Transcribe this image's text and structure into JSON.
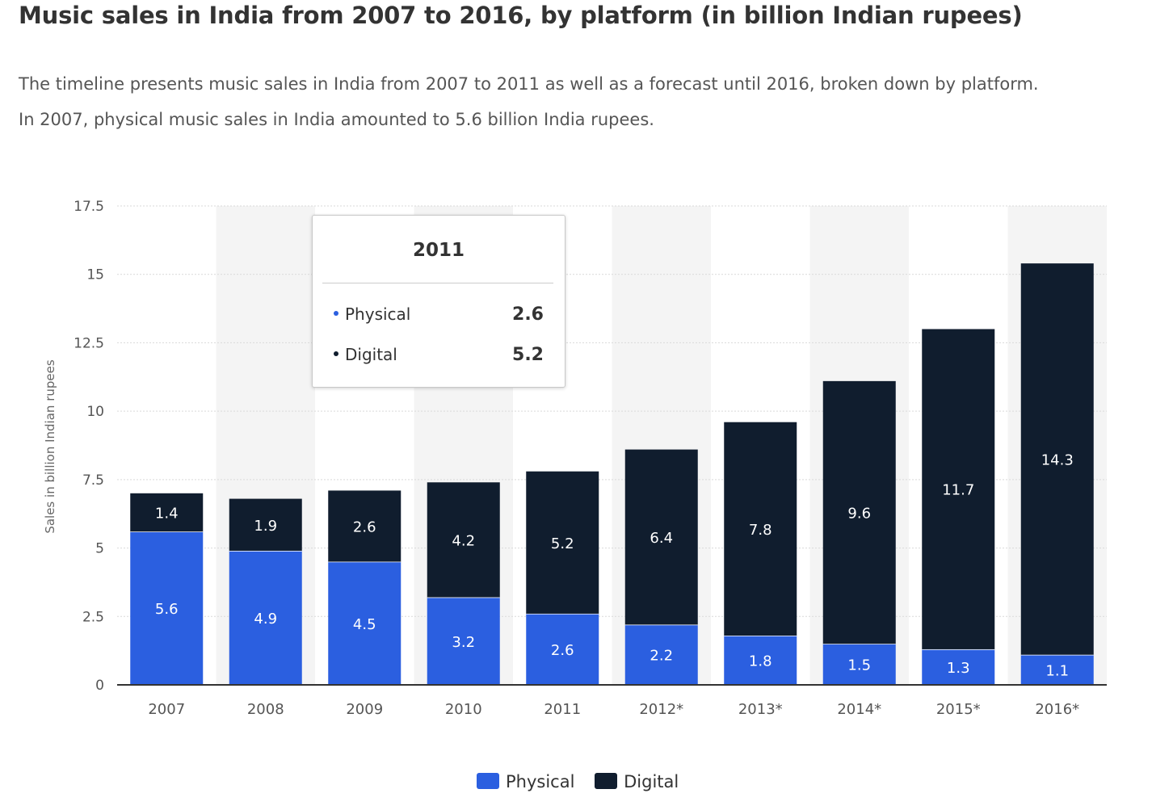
{
  "title": "Music sales in India from 2007 to 2016, by platform (in billion Indian rupees)",
  "description": [
    "The timeline presents music sales in India from 2007 to 2011 as well as a forecast until 2016, broken down by platform.",
    "In 2007, physical music sales in India amounted to 5.6 billion India rupees."
  ],
  "tooltip": {
    "title": "2011",
    "rows": [
      {
        "label": "Physical",
        "value": "2.6"
      },
      {
        "label": "Digital",
        "value": "5.2"
      }
    ]
  },
  "colors": {
    "physical": "#2b5fe0",
    "digital": "#101d2e",
    "band": "#f4f4f4",
    "grid": "#d9d9d9"
  },
  "chart_data": {
    "type": "bar",
    "stacked": true,
    "categories": [
      "2007",
      "2008",
      "2009",
      "2010",
      "2011",
      "2012*",
      "2013*",
      "2014*",
      "2015*",
      "2016*"
    ],
    "series": [
      {
        "name": "Physical",
        "values": [
          5.6,
          4.9,
          4.5,
          3.2,
          2.6,
          2.2,
          1.8,
          1.5,
          1.3,
          1.1
        ]
      },
      {
        "name": "Digital",
        "values": [
          1.4,
          1.9,
          2.6,
          4.2,
          5.2,
          6.4,
          7.8,
          9.6,
          11.7,
          14.3
        ]
      }
    ],
    "ylabel": "Sales in billion Indian rupees",
    "xlabel": "",
    "ylim": [
      0,
      17.5
    ],
    "yticks": [
      0,
      2.5,
      5,
      7.5,
      10,
      12.5,
      15,
      17.5
    ],
    "ytick_labels": [
      "0",
      "2.5",
      "5",
      "7.5",
      "10",
      "12.5",
      "15",
      "17.5"
    ],
    "grid": true,
    "legend": "bottom-center"
  }
}
